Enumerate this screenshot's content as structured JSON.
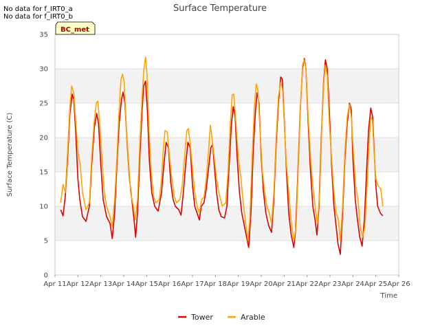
{
  "notices": [
    "No data for f_IRT0_a",
    "No data for f_IRT0_b"
  ],
  "badge": "BC_met",
  "chart_data": {
    "type": "line",
    "title": "Surface Temperature",
    "xlabel": "Time",
    "ylabel": "Surface Temperature (C)",
    "xlim": [
      11,
      26
    ],
    "ylim": [
      0,
      35
    ],
    "x_ticks": [
      11,
      12,
      13,
      14,
      15,
      16,
      17,
      18,
      19,
      20,
      21,
      22,
      23,
      24,
      25,
      26
    ],
    "x_tick_labels": [
      "Apr 11",
      "Apr 12",
      "Apr 13",
      "Apr 14",
      "Apr 15",
      "Apr 16",
      "Apr 17",
      "Apr 18",
      "Apr 19",
      "Apr 20",
      "Apr 21",
      "Apr 22",
      "Apr 23",
      "Apr 24",
      "Apr 25",
      "Apr 26"
    ],
    "y_ticks": [
      0,
      5,
      10,
      15,
      20,
      25,
      30,
      35
    ],
    "grid": true,
    "legend_position": "bottom",
    "series": [
      {
        "name": "Tower",
        "color": "#dd0000",
        "points": [
          [
            11.25,
            9.5
          ],
          [
            11.35,
            8.6
          ],
          [
            11.45,
            11.5
          ],
          [
            11.55,
            17
          ],
          [
            11.65,
            23.5
          ],
          [
            11.75,
            26.3
          ],
          [
            11.82,
            25.5
          ],
          [
            11.9,
            21
          ],
          [
            12.0,
            14
          ],
          [
            12.08,
            11
          ],
          [
            12.2,
            8.5
          ],
          [
            12.35,
            7.8
          ],
          [
            12.5,
            10
          ],
          [
            12.6,
            16
          ],
          [
            12.72,
            21.5
          ],
          [
            12.82,
            23.5
          ],
          [
            12.9,
            22
          ],
          [
            13.0,
            16
          ],
          [
            13.1,
            11
          ],
          [
            13.25,
            8.5
          ],
          [
            13.4,
            7.5
          ],
          [
            13.5,
            5.3
          ],
          [
            13.6,
            9
          ],
          [
            13.7,
            16
          ],
          [
            13.8,
            22
          ],
          [
            13.9,
            25.5
          ],
          [
            13.97,
            26.6
          ],
          [
            14.05,
            25
          ],
          [
            14.15,
            19
          ],
          [
            14.25,
            14
          ],
          [
            14.35,
            11
          ],
          [
            14.45,
            8
          ],
          [
            14.52,
            5.5
          ],
          [
            14.6,
            9
          ],
          [
            14.7,
            17
          ],
          [
            14.8,
            24
          ],
          [
            14.87,
            27.5
          ],
          [
            14.95,
            28.2
          ],
          [
            15.03,
            24
          ],
          [
            15.12,
            16.5
          ],
          [
            15.22,
            12
          ],
          [
            15.35,
            10
          ],
          [
            15.5,
            9.3
          ],
          [
            15.65,
            12
          ],
          [
            15.75,
            16
          ],
          [
            15.85,
            19.3
          ],
          [
            15.95,
            18.5
          ],
          [
            16.05,
            13.5
          ],
          [
            16.15,
            11
          ],
          [
            16.25,
            10
          ],
          [
            16.4,
            9.5
          ],
          [
            16.5,
            8.7
          ],
          [
            16.6,
            12
          ],
          [
            16.7,
            16
          ],
          [
            16.8,
            19.3
          ],
          [
            16.9,
            18.5
          ],
          [
            17.0,
            13
          ],
          [
            17.1,
            10
          ],
          [
            17.2,
            9
          ],
          [
            17.3,
            8
          ],
          [
            17.38,
            10
          ],
          [
            17.5,
            10.5
          ],
          [
            17.6,
            12.5
          ],
          [
            17.7,
            15.5
          ],
          [
            17.8,
            18.5
          ],
          [
            17.88,
            19
          ],
          [
            17.95,
            16
          ],
          [
            18.05,
            12
          ],
          [
            18.15,
            9.5
          ],
          [
            18.25,
            8.5
          ],
          [
            18.4,
            8.3
          ],
          [
            18.5,
            10
          ],
          [
            18.6,
            16
          ],
          [
            18.7,
            22
          ],
          [
            18.78,
            24.5
          ],
          [
            18.86,
            23
          ],
          [
            18.95,
            17
          ],
          [
            19.05,
            12
          ],
          [
            19.15,
            9
          ],
          [
            19.3,
            6.5
          ],
          [
            19.45,
            4
          ],
          [
            19.55,
            9
          ],
          [
            19.65,
            18
          ],
          [
            19.75,
            24
          ],
          [
            19.82,
            26.5
          ],
          [
            19.9,
            25
          ],
          [
            20.0,
            17
          ],
          [
            20.1,
            12
          ],
          [
            20.2,
            9
          ],
          [
            20.32,
            7.2
          ],
          [
            20.45,
            6.2
          ],
          [
            20.55,
            11
          ],
          [
            20.65,
            19
          ],
          [
            20.75,
            25
          ],
          [
            20.85,
            28.8
          ],
          [
            20.92,
            28.5
          ],
          [
            21.0,
            23
          ],
          [
            21.1,
            15
          ],
          [
            21.2,
            9
          ],
          [
            21.3,
            6
          ],
          [
            21.42,
            4
          ],
          [
            21.5,
            6.5
          ],
          [
            21.6,
            15
          ],
          [
            21.7,
            24
          ],
          [
            21.8,
            30
          ],
          [
            21.88,
            31.5
          ],
          [
            21.95,
            30
          ],
          [
            22.05,
            22
          ],
          [
            22.15,
            15
          ],
          [
            22.25,
            10
          ],
          [
            22.35,
            8
          ],
          [
            22.43,
            5.8
          ],
          [
            22.52,
            10
          ],
          [
            22.62,
            20
          ],
          [
            22.72,
            28
          ],
          [
            22.8,
            31.3
          ],
          [
            22.88,
            30
          ],
          [
            22.97,
            24
          ],
          [
            23.07,
            16
          ],
          [
            23.17,
            10
          ],
          [
            23.27,
            7
          ],
          [
            23.35,
            4.5
          ],
          [
            23.45,
            3
          ],
          [
            23.55,
            9
          ],
          [
            23.65,
            17
          ],
          [
            23.75,
            22
          ],
          [
            23.85,
            25
          ],
          [
            23.93,
            24
          ],
          [
            24.0,
            17
          ],
          [
            24.1,
            11
          ],
          [
            24.2,
            8
          ],
          [
            24.3,
            5.5
          ],
          [
            24.4,
            4.2
          ],
          [
            24.5,
            8
          ],
          [
            24.58,
            14
          ],
          [
            24.68,
            21
          ],
          [
            24.78,
            24.3
          ],
          [
            24.86,
            23
          ],
          [
            24.93,
            18
          ],
          [
            25.0,
            13
          ],
          [
            25.08,
            10
          ],
          [
            25.2,
            9
          ],
          [
            25.3,
            8.6
          ]
        ]
      },
      {
        "name": "Arable",
        "color": "#ffa500",
        "points": [
          [
            11.25,
            10.5
          ],
          [
            11.35,
            13.2
          ],
          [
            11.45,
            12
          ],
          [
            11.55,
            18
          ],
          [
            11.65,
            24.5
          ],
          [
            11.73,
            27.5
          ],
          [
            11.82,
            26.5
          ],
          [
            11.9,
            22.5
          ],
          [
            12.0,
            18
          ],
          [
            12.1,
            16
          ],
          [
            12.2,
            12
          ],
          [
            12.35,
            9.5
          ],
          [
            12.5,
            10.5
          ],
          [
            12.6,
            17
          ],
          [
            12.7,
            22
          ],
          [
            12.8,
            25
          ],
          [
            12.87,
            25.3
          ],
          [
            12.95,
            22
          ],
          [
            13.05,
            17
          ],
          [
            13.15,
            12
          ],
          [
            13.25,
            10
          ],
          [
            13.4,
            8.5
          ],
          [
            13.5,
            7
          ],
          [
            13.6,
            11
          ],
          [
            13.7,
            17
          ],
          [
            13.78,
            23
          ],
          [
            13.88,
            28.5
          ],
          [
            13.95,
            29.2
          ],
          [
            14.02,
            28
          ],
          [
            14.12,
            21
          ],
          [
            14.2,
            17
          ],
          [
            14.3,
            12
          ],
          [
            14.42,
            10
          ],
          [
            14.5,
            8
          ],
          [
            14.6,
            11
          ],
          [
            14.7,
            19
          ],
          [
            14.8,
            26
          ],
          [
            14.88,
            30
          ],
          [
            14.95,
            31.7
          ],
          [
            15.02,
            29
          ],
          [
            15.1,
            21
          ],
          [
            15.2,
            15
          ],
          [
            15.3,
            11.5
          ],
          [
            15.4,
            10.5
          ],
          [
            15.55,
            11
          ],
          [
            15.65,
            14
          ],
          [
            15.72,
            18
          ],
          [
            15.8,
            21
          ],
          [
            15.9,
            20.8
          ],
          [
            16.0,
            17
          ],
          [
            16.1,
            14
          ],
          [
            16.2,
            11.5
          ],
          [
            16.3,
            10.5
          ],
          [
            16.45,
            11
          ],
          [
            16.55,
            13
          ],
          [
            16.65,
            17
          ],
          [
            16.75,
            21
          ],
          [
            16.82,
            21.3
          ],
          [
            16.9,
            19
          ],
          [
            17.0,
            15.5
          ],
          [
            17.1,
            12
          ],
          [
            17.2,
            10
          ],
          [
            17.3,
            9
          ],
          [
            17.4,
            11
          ],
          [
            17.5,
            11.3
          ],
          [
            17.6,
            14
          ],
          [
            17.7,
            18
          ],
          [
            17.78,
            21.8
          ],
          [
            17.85,
            20
          ],
          [
            17.95,
            17
          ],
          [
            18.05,
            14
          ],
          [
            18.15,
            12
          ],
          [
            18.3,
            10
          ],
          [
            18.45,
            10.5
          ],
          [
            18.55,
            15
          ],
          [
            18.65,
            22
          ],
          [
            18.73,
            26.2
          ],
          [
            18.8,
            26.3
          ],
          [
            18.9,
            22
          ],
          [
            19.0,
            17
          ],
          [
            19.1,
            14.5
          ],
          [
            19.2,
            11
          ],
          [
            19.3,
            8
          ],
          [
            19.42,
            5
          ],
          [
            19.5,
            8
          ],
          [
            19.6,
            17
          ],
          [
            19.7,
            24.5
          ],
          [
            19.78,
            27.8
          ],
          [
            19.85,
            27
          ],
          [
            19.95,
            21
          ],
          [
            20.05,
            15
          ],
          [
            20.15,
            12
          ],
          [
            20.25,
            10
          ],
          [
            20.35,
            9
          ],
          [
            20.45,
            7.5
          ],
          [
            20.55,
            12
          ],
          [
            20.65,
            20
          ],
          [
            20.75,
            26
          ],
          [
            20.85,
            28
          ],
          [
            20.93,
            27
          ],
          [
            21.02,
            21
          ],
          [
            21.1,
            16
          ],
          [
            21.2,
            12
          ],
          [
            21.3,
            8
          ],
          [
            21.42,
            5
          ],
          [
            21.52,
            7
          ],
          [
            21.62,
            16
          ],
          [
            21.72,
            25
          ],
          [
            21.8,
            30.5
          ],
          [
            21.87,
            31.3
          ],
          [
            21.95,
            30
          ],
          [
            22.05,
            23
          ],
          [
            22.15,
            17
          ],
          [
            22.25,
            13
          ],
          [
            22.35,
            10
          ],
          [
            22.45,
            7.5
          ],
          [
            22.55,
            12
          ],
          [
            22.65,
            22
          ],
          [
            22.73,
            28
          ],
          [
            22.8,
            30.5
          ],
          [
            22.88,
            29
          ],
          [
            22.97,
            22
          ],
          [
            23.07,
            17
          ],
          [
            23.17,
            12
          ],
          [
            23.27,
            9
          ],
          [
            23.37,
            8
          ],
          [
            23.45,
            5
          ],
          [
            23.55,
            10
          ],
          [
            23.65,
            18
          ],
          [
            23.75,
            23
          ],
          [
            23.85,
            24.8
          ],
          [
            23.93,
            23
          ],
          [
            24.02,
            18
          ],
          [
            24.12,
            13
          ],
          [
            24.22,
            11
          ],
          [
            24.32,
            7
          ],
          [
            24.42,
            5.5
          ],
          [
            24.52,
            7
          ],
          [
            24.62,
            13
          ],
          [
            24.7,
            19
          ],
          [
            24.78,
            23
          ],
          [
            24.85,
            22.5
          ],
          [
            24.92,
            18
          ],
          [
            25.0,
            14
          ],
          [
            25.1,
            13
          ],
          [
            25.22,
            12.5
          ],
          [
            25.3,
            10
          ]
        ]
      }
    ]
  }
}
